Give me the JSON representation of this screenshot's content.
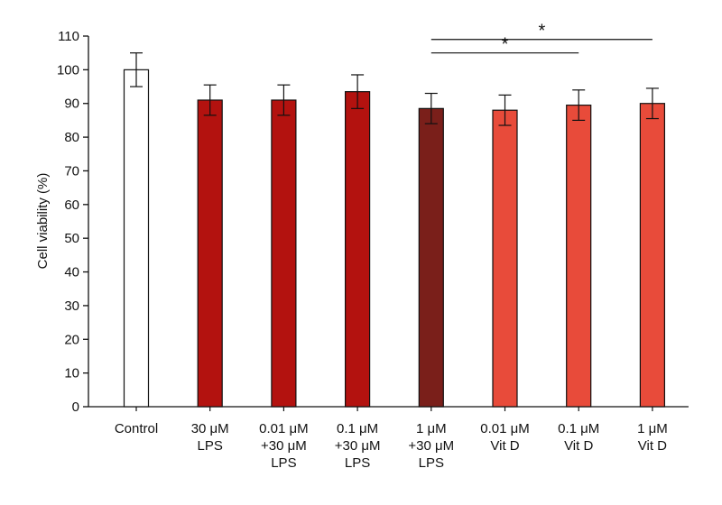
{
  "chart_data": {
    "type": "bar",
    "ylabel": "Cell viability (%)",
    "ylim": [
      0,
      110
    ],
    "yticks": [
      0,
      10,
      20,
      30,
      40,
      50,
      60,
      70,
      80,
      90,
      100,
      110
    ],
    "grid": false,
    "legend": "none",
    "categories": [
      [
        "Control"
      ],
      [
        "30 μM",
        "LPS"
      ],
      [
        "0.01 μM",
        "+30 μM",
        "LPS"
      ],
      [
        "0.1 μM",
        "+30 μM",
        "LPS"
      ],
      [
        "1 μM",
        "+30 μM",
        "LPS"
      ],
      [
        "0.01 μM",
        "Vit D"
      ],
      [
        "0.1 μM",
        "Vit D"
      ],
      [
        "1 μM",
        "Vit D"
      ]
    ],
    "values": [
      100,
      91,
      91,
      93.5,
      88.5,
      88,
      89.5,
      90
    ],
    "errors": [
      5,
      4.5,
      4.5,
      5,
      4.5,
      4.5,
      4.5,
      4.5
    ],
    "colors": [
      "#ffffff",
      "#b3120f",
      "#b3120f",
      "#b3120f",
      "#7a1f1a",
      "#e84b3a",
      "#e84b3a",
      "#e84b3a"
    ],
    "significance": [
      {
        "from": 4,
        "to": 6,
        "label": "*",
        "y": 105
      },
      {
        "from": 4,
        "to": 7,
        "label": "*",
        "y": 109
      }
    ]
  }
}
